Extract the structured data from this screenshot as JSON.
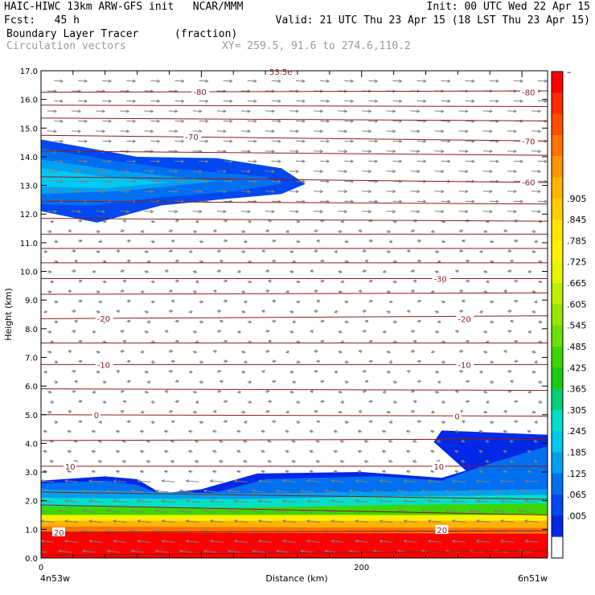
{
  "header": {
    "line1_left": "HAIC-HIWC 13km ARW-GFS init   NCAR/MMM",
    "line1_right": "Init: 00 UTC Wed 22 Apr 15",
    "line2_left": "Fcst:   45 h",
    "line2_right": "Valid: 21 UTC Thu 23 Apr 15 (18 LST Thu 23 Apr 15)",
    "line3_left": "Boundary Layer Tracer",
    "line3_unit": "(fraction)",
    "line4_left": "Circulation vectors",
    "line4_right": "XY= 259.5, 91.6 to 274.6,110.2"
  },
  "colors": {
    "isotherm": "#8b1c1c",
    "vector": "#808080",
    "scale": [
      "#ff0000",
      "#ff2a00",
      "#ff4e00",
      "#ff7200",
      "#ff9600",
      "#ffb400",
      "#ffcc00",
      "#ffe400",
      "#fff000",
      "#e6f500",
      "#bfef00",
      "#96e600",
      "#6ee000",
      "#3ed600",
      "#18cc10",
      "#00d07a",
      "#00e0c8",
      "#00c8f0",
      "#00a0f0",
      "#0070f0",
      "#0048f0",
      "#0028e6"
    ],
    "low": "#ffffff"
  },
  "chart_data": {
    "type": "heatmap",
    "title": "Boundary Layer Tracer",
    "unit": "(fraction)",
    "xlabel": "Distance (km)",
    "ylabel": "Height (km)",
    "xlim": [
      0,
      316
    ],
    "ylim": [
      0.0,
      17.0
    ],
    "x_ticks": [
      {
        "value": 0,
        "label": "0"
      },
      {
        "value": 200,
        "label": "200"
      }
    ],
    "x_end_labels": {
      "left": "4n53w",
      "right": "6n51w"
    },
    "y_ticks": [
      "0.0",
      "1.0",
      "2.0",
      "3.0",
      "4.0",
      "5.0",
      "6.0",
      "7.0",
      "8.0",
      "9.0",
      "10.0",
      "11.0",
      "12.0",
      "13.0",
      "14.0",
      "15.0",
      "16.0",
      "17.0"
    ],
    "colorbar_labels": [
      "–",
      ".905",
      ".845",
      ".785",
      ".725",
      ".665",
      ".605",
      ".545",
      ".485",
      ".425",
      ".365",
      ".305",
      ".245",
      ".185",
      ".125",
      ".065",
      ".005"
    ],
    "tracer_layers": [
      {
        "level": "0.005-0.065",
        "polygon": [
          [
            0,
            0
          ],
          [
            0,
            2.7
          ],
          [
            40,
            2.85
          ],
          [
            60,
            2.75
          ],
          [
            75,
            2.25
          ],
          [
            100,
            2.4
          ],
          [
            135,
            2.95
          ],
          [
            200,
            3.0
          ],
          [
            250,
            2.8
          ],
          [
            265,
            3.05
          ],
          [
            245,
            4.05
          ],
          [
            250,
            4.45
          ],
          [
            316,
            4.3
          ],
          [
            316,
            0
          ]
        ]
      },
      {
        "level": "0.065-0.125",
        "polygon": [
          [
            0,
            0
          ],
          [
            0,
            2.6
          ],
          [
            40,
            2.7
          ],
          [
            60,
            2.55
          ],
          [
            80,
            2.1
          ],
          [
            110,
            2.3
          ],
          [
            140,
            2.75
          ],
          [
            210,
            2.85
          ],
          [
            250,
            2.7
          ],
          [
            280,
            3.3
          ],
          [
            316,
            3.9
          ],
          [
            316,
            0
          ]
        ]
      },
      {
        "level": "0.125-0.185",
        "polygon": [
          [
            0,
            0
          ],
          [
            0,
            2.4
          ],
          [
            70,
            2.3
          ],
          [
            120,
            2.25
          ],
          [
            200,
            2.3
          ],
          [
            316,
            2.4
          ],
          [
            316,
            0
          ]
        ]
      },
      {
        "level": "0.185-0.305",
        "polygon": [
          [
            0,
            0
          ],
          [
            0,
            2.1
          ],
          [
            120,
            2.05
          ],
          [
            220,
            2.15
          ],
          [
            316,
            2.2
          ],
          [
            316,
            0
          ]
        ]
      },
      {
        "level": "0.305-0.485",
        "polygon": [
          [
            0,
            0
          ],
          [
            0,
            1.8
          ],
          [
            120,
            1.75
          ],
          [
            220,
            1.85
          ],
          [
            316,
            1.9
          ],
          [
            316,
            0
          ]
        ]
      },
      {
        "level": "0.485-0.605",
        "polygon": [
          [
            0,
            0
          ],
          [
            0,
            1.5
          ],
          [
            316,
            1.5
          ],
          [
            316,
            0
          ]
        ]
      },
      {
        "level": "0.605-0.725",
        "polygon": [
          [
            0,
            0
          ],
          [
            0,
            1.3
          ],
          [
            316,
            1.3
          ],
          [
            316,
            0
          ]
        ]
      },
      {
        "level": "0.725-0.845",
        "polygon": [
          [
            0,
            0
          ],
          [
            0,
            1.1
          ],
          [
            316,
            1.05
          ],
          [
            316,
            0
          ]
        ]
      },
      {
        "level": ">0.905",
        "polygon": [
          [
            0,
            0
          ],
          [
            0,
            0.9
          ],
          [
            316,
            0.85
          ],
          [
            316,
            0
          ]
        ]
      }
    ],
    "upper_plume": [
      {
        "level": "0.005-0.065",
        "polygon": [
          [
            0,
            14.6
          ],
          [
            30,
            14.3
          ],
          [
            60,
            14.0
          ],
          [
            110,
            13.95
          ],
          [
            150,
            13.6
          ],
          [
            165,
            13.05
          ],
          [
            150,
            12.7
          ],
          [
            110,
            12.5
          ],
          [
            75,
            12.3
          ],
          [
            55,
            12.0
          ],
          [
            35,
            11.7
          ],
          [
            0,
            12.1
          ]
        ]
      },
      {
        "level": "0.065-0.125",
        "polygon": [
          [
            0,
            14.3
          ],
          [
            40,
            13.9
          ],
          [
            80,
            13.6
          ],
          [
            140,
            13.3
          ],
          [
            150,
            13.05
          ],
          [
            120,
            12.8
          ],
          [
            60,
            12.5
          ],
          [
            30,
            12.3
          ],
          [
            0,
            12.35
          ]
        ]
      },
      {
        "level": "0.125-0.185",
        "polygon": [
          [
            0,
            13.9
          ],
          [
            50,
            13.5
          ],
          [
            110,
            13.15
          ],
          [
            50,
            12.8
          ],
          [
            0,
            12.7
          ]
        ]
      },
      {
        "level": "0.185-0.245",
        "polygon": [
          [
            0,
            13.6
          ],
          [
            40,
            13.3
          ],
          [
            80,
            13.1
          ],
          [
            40,
            12.9
          ],
          [
            0,
            12.95
          ]
        ]
      }
    ],
    "isotherms": [
      {
        "label": "-80",
        "y_left": 16.25,
        "y_right": 16.3,
        "label_x": 95
      },
      {
        "label": "-70",
        "y_left": 14.75,
        "y_right": 14.55,
        "label_x": 90
      },
      {
        "label": "-60",
        "y_left": 13.3,
        "y_right": 13.1,
        "label_x": 300
      },
      {
        "label": "-30",
        "y_left": 9.75,
        "y_right": 9.75,
        "label_x": 245
      },
      {
        "label": "-20",
        "y_left": 8.35,
        "y_right": 8.45,
        "label_x": 35
      },
      {
        "label": "-10",
        "y_left": 6.75,
        "y_right": 6.75,
        "label_x": 35
      },
      {
        "label": "0",
        "y_left": 5.0,
        "y_right": 4.95,
        "label_x": 33
      },
      {
        "label": "10",
        "y_left": 3.2,
        "y_right": 3.2,
        "label_x": 15
      },
      {
        "label": "20",
        "y_left": 0.9,
        "y_right": 0.95,
        "label_x": 8
      }
    ],
    "isotherm_labels_right": [
      {
        "label": "-80",
        "x": 300,
        "y": 16.25
      },
      {
        "label": "-70",
        "x": 300,
        "y": 14.55
      },
      {
        "label": "-20",
        "x": 260,
        "y": 8.35
      },
      {
        "label": "-10",
        "x": 260,
        "y": 6.75
      },
      {
        "label": "0",
        "x": 258,
        "y": 4.95
      },
      {
        "label": "10",
        "x": 245,
        "y": 3.2
      },
      {
        "label": "20",
        "x": 247,
        "y": 0.98
      }
    ],
    "extra_lines": [
      {
        "label": "",
        "y_left": 17.15,
        "y_right": 17.15
      },
      {
        "label": "",
        "y_left": 15.8,
        "y_right": 15.75
      },
      {
        "label": "",
        "y_left": 15.35,
        "y_right": 15.25
      },
      {
        "label": "",
        "y_left": 14.2,
        "y_right": 14.05
      },
      {
        "label": "",
        "y_left": 12.45,
        "y_right": 12.35
      },
      {
        "label": "",
        "y_left": 11.85,
        "y_right": 11.75
      },
      {
        "label": "",
        "y_left": 11.3,
        "y_right": 11.3
      },
      {
        "label": "",
        "y_left": 10.8,
        "y_right": 10.8
      },
      {
        "label": "",
        "y_left": 10.3,
        "y_right": 10.3
      },
      {
        "label": "",
        "y_left": 9.2,
        "y_right": 9.25
      },
      {
        "label": "",
        "y_left": 7.5,
        "y_right": 7.5
      },
      {
        "label": "",
        "y_left": 5.9,
        "y_right": 5.85
      },
      {
        "label": "",
        "y_left": 4.1,
        "y_right": 4.15
      },
      {
        "label": "",
        "y_left": 2.3,
        "y_right": 2.05
      },
      {
        "label": "",
        "y_left": 1.85,
        "y_right": 1.5
      },
      {
        "label": "",
        "y_left": 0.1,
        "y_right": 0.25
      }
    ],
    "top_clipped_label": "53.5e"
  }
}
